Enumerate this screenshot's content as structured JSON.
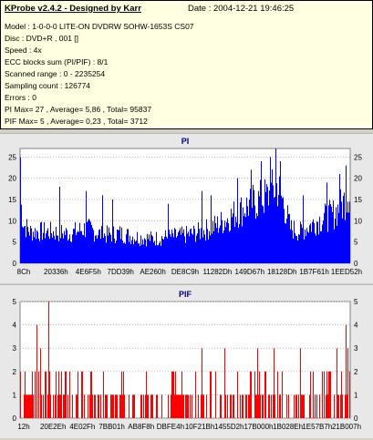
{
  "header": {
    "title": "KProbe v2.4.2 - Designed by Karr",
    "date": "Date : 2004-12-21 19:46:25"
  },
  "info_lines": [
    "Model : 1-0-0-0 LITE-ON DVDRW SOHW-1653S CS07",
    "Disc : DVD+R , 001 []",
    "Speed : 4x",
    "ECC blocks sum (PI/PIF) : 8/1",
    "Scanned range : 0 - 2235254",
    "Sampling count : 126774",
    "Errors : 0",
    "PI Max= 27 , Average= 5,86 , Total= 95837",
    "PIF Max= 5 , Average= 0,23 , Total= 3712"
  ],
  "colors": {
    "pi": "#0000ff",
    "pif": "#ff0000",
    "grid": "#bbbbbb",
    "title": "#000080"
  },
  "chart_data": [
    {
      "type": "area",
      "title": "PI",
      "ylim": [
        0,
        27
      ],
      "yticks": [
        0,
        5,
        10,
        15,
        20,
        25
      ],
      "xticks": [
        "8Ch",
        "20336h",
        "4E6F5h",
        "7DD39h",
        "AE260h",
        "DE8C9h",
        "11282Dh",
        "149D67h",
        "18128Dh",
        "1B7F61h",
        "1EED52h"
      ],
      "envelope": [
        [
          0,
          18
        ],
        [
          0.01,
          11
        ],
        [
          0.03,
          9
        ],
        [
          0.08,
          9
        ],
        [
          0.15,
          8.5
        ],
        [
          0.2,
          10
        ],
        [
          0.25,
          8
        ],
        [
          0.3,
          8.5
        ],
        [
          0.35,
          7.5
        ],
        [
          0.4,
          7
        ],
        [
          0.45,
          7.5
        ],
        [
          0.5,
          8
        ],
        [
          0.55,
          9
        ],
        [
          0.6,
          11
        ],
        [
          0.65,
          14
        ],
        [
          0.7,
          17
        ],
        [
          0.75,
          19
        ],
        [
          0.78,
          22
        ],
        [
          0.8,
          17
        ],
        [
          0.82,
          10
        ],
        [
          0.85,
          9
        ],
        [
          0.9,
          12
        ],
        [
          0.95,
          14
        ],
        [
          0.98,
          17
        ],
        [
          1.0,
          21
        ]
      ],
      "spikes": [
        [
          0.0,
          25
        ],
        [
          0.12,
          18
        ],
        [
          0.2,
          17
        ],
        [
          0.25,
          16
        ],
        [
          0.28,
          15
        ],
        [
          0.45,
          14
        ],
        [
          0.55,
          17
        ],
        [
          0.58,
          16
        ],
        [
          0.66,
          20
        ],
        [
          0.7,
          22
        ],
        [
          0.73,
          24
        ],
        [
          0.76,
          25
        ],
        [
          0.775,
          27
        ],
        [
          0.79,
          24
        ],
        [
          0.86,
          16
        ],
        [
          0.93,
          19
        ],
        [
          0.97,
          21
        ],
        [
          0.99,
          23
        ]
      ]
    },
    {
      "type": "bar",
      "title": "PIF",
      "ylim": [
        0,
        5
      ],
      "yticks": [
        0,
        1,
        2,
        3,
        4,
        5
      ],
      "xticks": [
        "12h",
        "20E2Eh",
        "4E02Fh",
        "7BB01h",
        "AB8F8h",
        "DBFE4h",
        "10F21Bh",
        "1455D2h",
        "17B000h",
        "1B028Eh",
        "1E57B7h",
        "21B007h"
      ],
      "spikes": [
        [
          0.05,
          4
        ],
        [
          0.06,
          3
        ],
        [
          0.085,
          5
        ],
        [
          0.15,
          2
        ],
        [
          0.55,
          3
        ],
        [
          0.58,
          2
        ],
        [
          0.62,
          3
        ],
        [
          0.66,
          2
        ],
        [
          0.7,
          2
        ],
        [
          0.72,
          3
        ],
        [
          0.77,
          3
        ],
        [
          0.85,
          3
        ],
        [
          0.88,
          2
        ],
        [
          0.93,
          2
        ],
        [
          0.96,
          3
        ],
        [
          0.99,
          4
        ],
        [
          0.995,
          3
        ]
      ]
    }
  ]
}
